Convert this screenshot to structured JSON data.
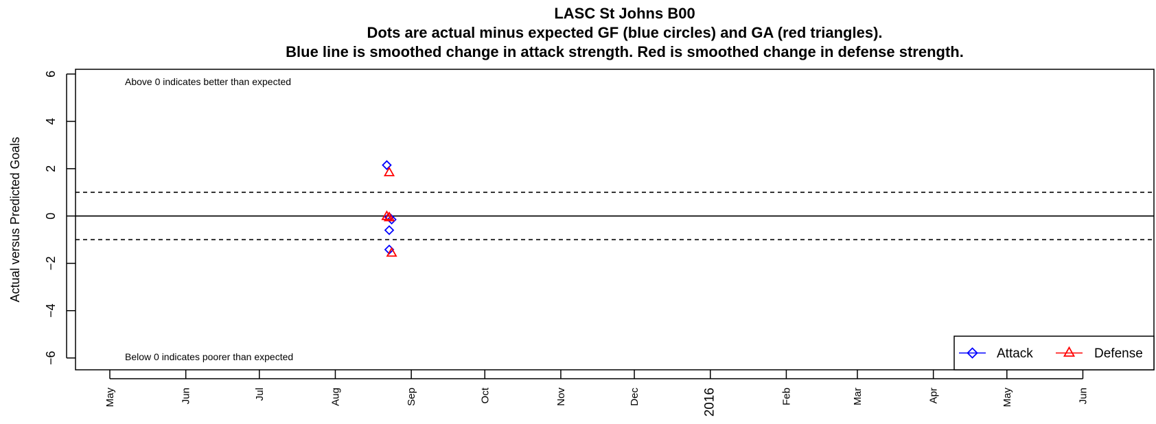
{
  "chart_data": {
    "type": "scatter",
    "title": "LASC St Johns B00",
    "subtitle_lines": [
      "Dots are actual minus expected GF (blue circles) and GA (red triangles).",
      "Blue line is smoothed change in attack strength. Red is smoothed change in defense strength."
    ],
    "ylabel": "Actual versus Predicted Goals",
    "xlabel": "",
    "ylim": [
      -6.5,
      6.2
    ],
    "xlim": [
      "2015-04-17",
      "2016-06-30"
    ],
    "y_ticks": [
      6,
      4,
      2,
      0,
      -2,
      -4,
      -6
    ],
    "x_ticks": [
      {
        "date": "2015-05-01",
        "label": "May"
      },
      {
        "date": "2015-06-01",
        "label": "Jun"
      },
      {
        "date": "2015-07-01",
        "label": "Jul"
      },
      {
        "date": "2015-08-01",
        "label": "Aug"
      },
      {
        "date": "2015-09-01",
        "label": "Sep"
      },
      {
        "date": "2015-10-01",
        "label": "Oct"
      },
      {
        "date": "2015-11-01",
        "label": "Nov"
      },
      {
        "date": "2015-12-01",
        "label": "Dec"
      },
      {
        "date": "2016-01-01",
        "label": "2016"
      },
      {
        "date": "2016-02-01",
        "label": "Feb"
      },
      {
        "date": "2016-03-01",
        "label": "Mar"
      },
      {
        "date": "2016-04-01",
        "label": "Apr"
      },
      {
        "date": "2016-05-01",
        "label": "May"
      },
      {
        "date": "2016-06-01",
        "label": "Jun"
      }
    ],
    "reference_lines": [
      {
        "y": 0,
        "style": "solid"
      },
      {
        "y": 1,
        "style": "dashed"
      },
      {
        "y": -1,
        "style": "dashed"
      }
    ],
    "annotations": [
      {
        "text": "Above 0 indicates better than expected",
        "position": "top-left"
      },
      {
        "text": "Below 0 indicates poorer than expected",
        "position": "bottom-left"
      }
    ],
    "legend": {
      "position": "bottom-right"
    },
    "series": [
      {
        "name": "Attack",
        "color": "#0000ff",
        "marker": "diamond",
        "points": [
          {
            "x": "2015-08-22",
            "y": 2.15
          },
          {
            "x": "2015-08-23",
            "y": -0.05
          },
          {
            "x": "2015-08-24",
            "y": -0.15
          },
          {
            "x": "2015-08-23",
            "y": -0.6
          },
          {
            "x": "2015-08-23",
            "y": -1.42
          }
        ]
      },
      {
        "name": "Defense",
        "color": "#ff0000",
        "marker": "triangle",
        "points": [
          {
            "x": "2015-08-23",
            "y": 1.85
          },
          {
            "x": "2015-08-22",
            "y": 0.0
          },
          {
            "x": "2015-08-23",
            "y": -0.05
          },
          {
            "x": "2015-08-24",
            "y": -1.55
          }
        ]
      }
    ]
  }
}
